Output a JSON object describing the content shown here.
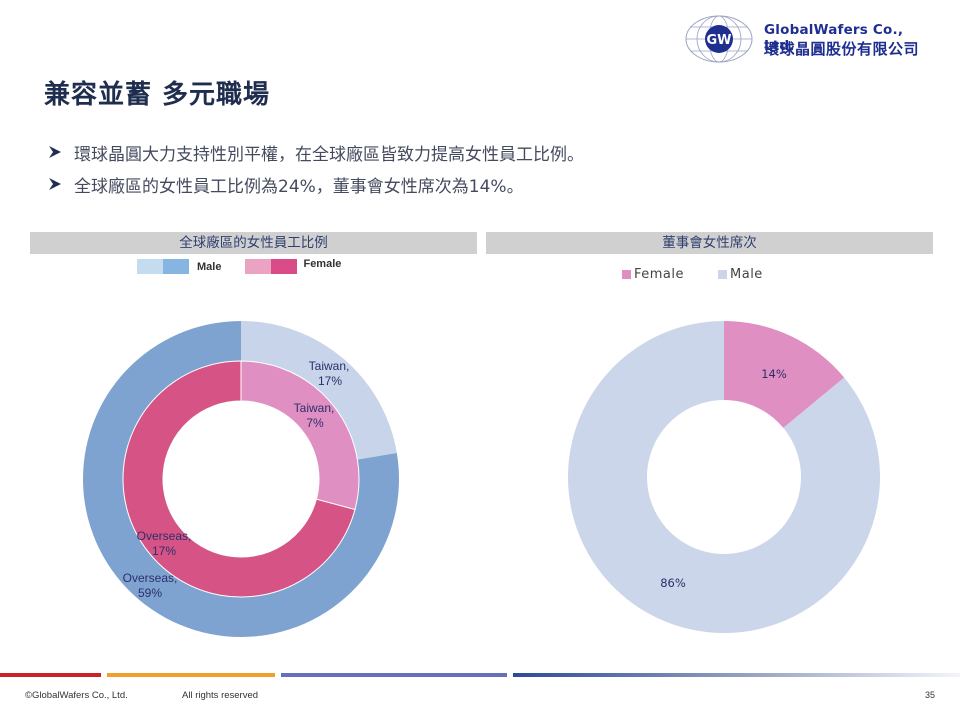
{
  "header": {
    "logo_mark": "GW",
    "company_en": "GlobalWafers Co., Ltd.",
    "company_zh": "環球晶圓股份有限公司"
  },
  "page_title": "兼容並蓄 多元職場",
  "bullets": [
    "環球晶圓大力支持性別平權，在全球廠區皆致力提高女性員工比例。",
    "全球廠區的女性員工比例為24%，董事會女性席次為14%。"
  ],
  "colors": {
    "male_taiwan": "#c7d4e9",
    "male_overseas": "#7fa3d0",
    "female_taiwan": "#e08fc3",
    "female_overseas": "#d65485",
    "board_female": "#e08fc3",
    "board_male": "#cbd6ea",
    "legend_male_light": "#c5dcf0",
    "legend_male_dark": "#86b5e2",
    "legend_female_light": "#eaa3c3",
    "legend_female_dark": "#d94c88"
  },
  "chart_data": [
    {
      "type": "pie",
      "variant": "nested-donut",
      "title": "全球廠區的女性員工比例",
      "legend": [
        "Male",
        "Female"
      ],
      "legend_position": "top",
      "rings": [
        {
          "name": "Male",
          "ring": "outer",
          "slices": [
            {
              "label": "Taiwan",
              "value": 17,
              "display": "Taiwan,\n17%"
            },
            {
              "label": "Overseas",
              "value": 59,
              "display": "Overseas,\n59%"
            }
          ]
        },
        {
          "name": "Female",
          "ring": "inner",
          "slices": [
            {
              "label": "Taiwan",
              "value": 7,
              "display": "Taiwan,\n7%"
            },
            {
              "label": "Overseas",
              "value": 17,
              "display": "Overseas,\n17%"
            }
          ]
        }
      ],
      "labels": {
        "outer_taiwan": [
          "Taiwan,",
          "17%"
        ],
        "outer_overseas": [
          "Overseas,",
          "59%"
        ],
        "inner_taiwan": [
          "Taiwan,",
          "7%"
        ],
        "inner_overseas": [
          "Overseas,",
          "17%"
        ]
      }
    },
    {
      "type": "pie",
      "variant": "donut",
      "title": "董事會女性席次",
      "legend": [
        "Female",
        "Male"
      ],
      "legend_position": "top",
      "slices": [
        {
          "label": "Female",
          "value": 14,
          "display": "14%"
        },
        {
          "label": "Male",
          "value": 86,
          "display": "86%"
        }
      ]
    }
  ],
  "footer": {
    "copyright": "©GlobalWafers Co., Ltd.",
    "rights": "All rights reserved",
    "page_number": "35"
  }
}
